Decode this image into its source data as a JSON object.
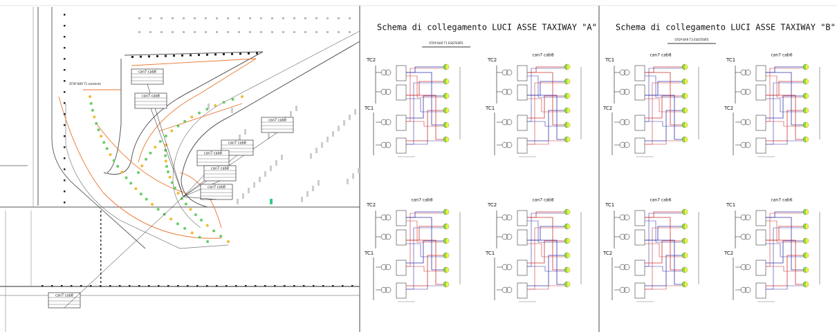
{
  "map": {
    "stop_bar": "STOP BAR T1 esistente",
    "callouts": [
      "can7 cab8",
      "can7 cab8",
      "can7 cab8",
      "can7 cab8",
      "can7 cab8",
      "can7 cab8",
      "can7 cab8",
      "can7 cab8"
    ]
  },
  "panels": [
    {
      "title": "Schema di collegamento LUCI ASSE TAXIWAY \"A\"",
      "stop_bar": "STOP BAR T1 ESISTENTE",
      "diagrams": [
        {
          "tc_top": "TC2",
          "tc_bottom": "TC1"
        },
        {
          "header": "can7 cab8",
          "tc_top": "TC2",
          "tc_bottom": "TC1"
        },
        {
          "header": "can7 cab8",
          "tc_top": "TC2",
          "tc_bottom": "TC1"
        },
        {
          "header": "can7 cab8",
          "tc_top": "TC2",
          "tc_bottom": "TC1"
        }
      ]
    },
    {
      "title": "Schema di collegamento LUCI ASSE TAXIWAY \"B\"",
      "stop_bar": "STOP BAR T3 ESISTENTE",
      "diagrams": [
        {
          "header": "can7 cab8",
          "tc_top": "TC1",
          "tc_bottom": "TC2"
        },
        {
          "header": "can7 cab6",
          "tc_top": "TC1",
          "tc_bottom": "TC2"
        },
        {
          "header": "can7 cab6",
          "tc_top": "TC1",
          "tc_bottom": "TC2"
        },
        {
          "header": "can7 cab6",
          "tc_top": "TC1",
          "tc_bottom": "TC2"
        }
      ]
    }
  ]
}
